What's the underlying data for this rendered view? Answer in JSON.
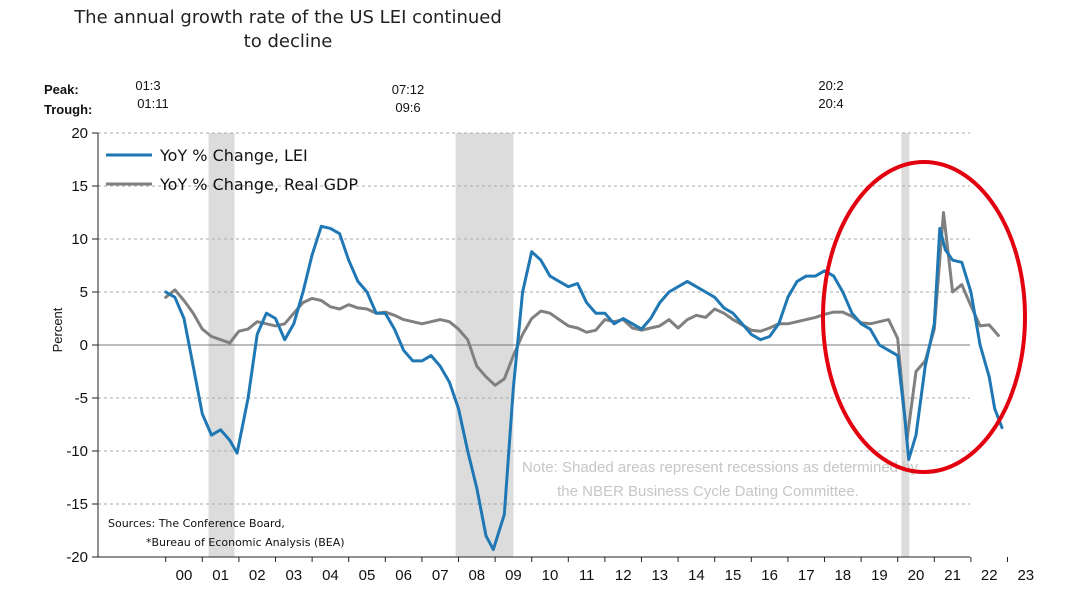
{
  "title_line1": "The annual growth rate of the US LEI continued",
  "title_line2": "to decline",
  "peak_label": "Peak:",
  "trough_label": "Trough:",
  "recessions": [
    {
      "peak": "01:3",
      "trough": "01:11",
      "start": 2001.17,
      "end": 2001.88
    },
    {
      "peak": "07:12",
      "trough": "09:6",
      "start": 2007.92,
      "end": 2009.5
    },
    {
      "peak": "20:2",
      "trough": "20:4",
      "start": 2020.1,
      "end": 2020.3
    }
  ],
  "note_line1": "Note: Shaded areas represent recessions as determined by",
  "note_line2": "the NBER Business Cycle Dating Committee.",
  "sources_line1": "Sources: The Conference Board,",
  "sources_line2": "*Bureau of Economic Analysis (BEA)",
  "colors": {
    "lei": "#1f77b4",
    "gdp": "#808080",
    "recession": "#dcdcdc",
    "highlight": "#e3000f"
  },
  "chart_data": {
    "type": "line",
    "ylabel": "Percent",
    "ylim": [
      -20,
      20
    ],
    "yticks": [
      20,
      15,
      10,
      5,
      0,
      -5,
      -10,
      -15,
      -20
    ],
    "xlim": [
      2000,
      2023.5
    ],
    "xticks": [
      "00",
      "01",
      "02",
      "03",
      "04",
      "05",
      "06",
      "07",
      "08",
      "09",
      "10",
      "11",
      "12",
      "13",
      "14",
      "15",
      "16",
      "17",
      "18",
      "19",
      "20",
      "21",
      "22",
      "23"
    ],
    "legend_placement": "top-left",
    "grid": "horizontal dashed",
    "series": [
      {
        "name": "YoY % Change, LEI",
        "key": "lei",
        "points": [
          [
            2000.0,
            5.0
          ],
          [
            2000.25,
            4.5
          ],
          [
            2000.5,
            2.5
          ],
          [
            2000.75,
            -2.0
          ],
          [
            2001.0,
            -6.5
          ],
          [
            2001.25,
            -8.5
          ],
          [
            2001.5,
            -8.0
          ],
          [
            2001.75,
            -9.0
          ],
          [
            2001.95,
            -10.2
          ],
          [
            2002.25,
            -5.0
          ],
          [
            2002.5,
            1.0
          ],
          [
            2002.75,
            3.0
          ],
          [
            2003.0,
            2.5
          ],
          [
            2003.25,
            0.5
          ],
          [
            2003.5,
            2.0
          ],
          [
            2003.75,
            5.0
          ],
          [
            2004.0,
            8.5
          ],
          [
            2004.25,
            11.2
          ],
          [
            2004.5,
            11.0
          ],
          [
            2004.75,
            10.5
          ],
          [
            2005.0,
            8.0
          ],
          [
            2005.25,
            6.0
          ],
          [
            2005.5,
            5.0
          ],
          [
            2005.75,
            3.0
          ],
          [
            2006.0,
            3.0
          ],
          [
            2006.25,
            1.5
          ],
          [
            2006.5,
            -0.5
          ],
          [
            2006.75,
            -1.5
          ],
          [
            2007.0,
            -1.5
          ],
          [
            2007.25,
            -1.0
          ],
          [
            2007.5,
            -2.0
          ],
          [
            2007.75,
            -3.5
          ],
          [
            2008.0,
            -6.0
          ],
          [
            2008.25,
            -10.0
          ],
          [
            2008.5,
            -13.5
          ],
          [
            2008.75,
            -18.0
          ],
          [
            2008.95,
            -19.3
          ],
          [
            2009.25,
            -16.0
          ],
          [
            2009.5,
            -4.0
          ],
          [
            2009.75,
            5.0
          ],
          [
            2010.0,
            8.8
          ],
          [
            2010.25,
            8.0
          ],
          [
            2010.5,
            6.5
          ],
          [
            2010.75,
            6.0
          ],
          [
            2011.0,
            5.5
          ],
          [
            2011.25,
            5.8
          ],
          [
            2011.5,
            4.0
          ],
          [
            2011.75,
            3.0
          ],
          [
            2012.0,
            3.0
          ],
          [
            2012.25,
            2.0
          ],
          [
            2012.5,
            2.5
          ],
          [
            2012.75,
            2.0
          ],
          [
            2013.0,
            1.5
          ],
          [
            2013.25,
            2.5
          ],
          [
            2013.5,
            4.0
          ],
          [
            2013.75,
            5.0
          ],
          [
            2014.0,
            5.5
          ],
          [
            2014.25,
            6.0
          ],
          [
            2014.5,
            5.5
          ],
          [
            2014.75,
            5.0
          ],
          [
            2015.0,
            4.5
          ],
          [
            2015.25,
            3.5
          ],
          [
            2015.5,
            3.0
          ],
          [
            2015.75,
            2.0
          ],
          [
            2016.0,
            1.0
          ],
          [
            2016.25,
            0.5
          ],
          [
            2016.5,
            0.8
          ],
          [
            2016.75,
            2.0
          ],
          [
            2017.0,
            4.5
          ],
          [
            2017.25,
            6.0
          ],
          [
            2017.5,
            6.5
          ],
          [
            2017.75,
            6.5
          ],
          [
            2018.0,
            7.0
          ],
          [
            2018.25,
            6.5
          ],
          [
            2018.5,
            5.0
          ],
          [
            2018.75,
            3.0
          ],
          [
            2019.0,
            2.0
          ],
          [
            2019.25,
            1.5
          ],
          [
            2019.5,
            0.0
          ],
          [
            2019.75,
            -0.5
          ],
          [
            2020.0,
            -1.0
          ],
          [
            2020.2,
            -7.0
          ],
          [
            2020.3,
            -10.8
          ],
          [
            2020.5,
            -8.5
          ],
          [
            2020.75,
            -2.0
          ],
          [
            2021.0,
            2.0
          ],
          [
            2021.15,
            11.0
          ],
          [
            2021.3,
            9.0
          ],
          [
            2021.5,
            8.0
          ],
          [
            2021.75,
            7.8
          ],
          [
            2022.0,
            5.0
          ],
          [
            2022.25,
            0.0
          ],
          [
            2022.5,
            -3.0
          ],
          [
            2022.65,
            -6.0
          ],
          [
            2022.85,
            -7.8
          ]
        ]
      },
      {
        "name": "YoY % Change, Real GDP",
        "key": "gdp",
        "points": [
          [
            2000.0,
            4.5
          ],
          [
            2000.25,
            5.2
          ],
          [
            2000.5,
            4.2
          ],
          [
            2000.75,
            3.0
          ],
          [
            2001.0,
            1.5
          ],
          [
            2001.25,
            0.8
          ],
          [
            2001.5,
            0.5
          ],
          [
            2001.75,
            0.2
          ],
          [
            2002.0,
            1.3
          ],
          [
            2002.25,
            1.5
          ],
          [
            2002.5,
            2.2
          ],
          [
            2002.75,
            2.0
          ],
          [
            2003.0,
            1.8
          ],
          [
            2003.25,
            2.0
          ],
          [
            2003.5,
            3.0
          ],
          [
            2003.75,
            4.0
          ],
          [
            2004.0,
            4.4
          ],
          [
            2004.25,
            4.2
          ],
          [
            2004.5,
            3.6
          ],
          [
            2004.75,
            3.4
          ],
          [
            2005.0,
            3.8
          ],
          [
            2005.25,
            3.5
          ],
          [
            2005.5,
            3.4
          ],
          [
            2005.75,
            3.0
          ],
          [
            2006.0,
            3.1
          ],
          [
            2006.25,
            2.8
          ],
          [
            2006.5,
            2.4
          ],
          [
            2006.75,
            2.2
          ],
          [
            2007.0,
            2.0
          ],
          [
            2007.25,
            2.2
          ],
          [
            2007.5,
            2.4
          ],
          [
            2007.75,
            2.2
          ],
          [
            2008.0,
            1.5
          ],
          [
            2008.25,
            0.5
          ],
          [
            2008.5,
            -2.0
          ],
          [
            2008.75,
            -3.0
          ],
          [
            2009.0,
            -3.8
          ],
          [
            2009.25,
            -3.2
          ],
          [
            2009.5,
            -1.0
          ],
          [
            2009.75,
            1.0
          ],
          [
            2010.0,
            2.5
          ],
          [
            2010.25,
            3.2
          ],
          [
            2010.5,
            3.0
          ],
          [
            2010.75,
            2.4
          ],
          [
            2011.0,
            1.8
          ],
          [
            2011.25,
            1.6
          ],
          [
            2011.5,
            1.2
          ],
          [
            2011.75,
            1.4
          ],
          [
            2012.0,
            2.4
          ],
          [
            2012.25,
            2.2
          ],
          [
            2012.5,
            2.4
          ],
          [
            2012.75,
            1.6
          ],
          [
            2013.0,
            1.4
          ],
          [
            2013.25,
            1.6
          ],
          [
            2013.5,
            1.8
          ],
          [
            2013.75,
            2.4
          ],
          [
            2014.0,
            1.6
          ],
          [
            2014.25,
            2.4
          ],
          [
            2014.5,
            2.8
          ],
          [
            2014.75,
            2.6
          ],
          [
            2015.0,
            3.4
          ],
          [
            2015.25,
            3.0
          ],
          [
            2015.5,
            2.4
          ],
          [
            2015.75,
            1.9
          ],
          [
            2016.0,
            1.4
          ],
          [
            2016.25,
            1.3
          ],
          [
            2016.5,
            1.6
          ],
          [
            2016.75,
            2.0
          ],
          [
            2017.0,
            2.0
          ],
          [
            2017.25,
            2.2
          ],
          [
            2017.5,
            2.4
          ],
          [
            2017.75,
            2.6
          ],
          [
            2018.0,
            2.9
          ],
          [
            2018.25,
            3.1
          ],
          [
            2018.5,
            3.1
          ],
          [
            2018.75,
            2.7
          ],
          [
            2019.0,
            2.1
          ],
          [
            2019.25,
            2.0
          ],
          [
            2019.5,
            2.2
          ],
          [
            2019.75,
            2.4
          ],
          [
            2020.0,
            0.6
          ],
          [
            2020.25,
            -9.0
          ],
          [
            2020.5,
            -2.5
          ],
          [
            2020.75,
            -1.5
          ],
          [
            2021.0,
            1.5
          ],
          [
            2021.25,
            12.5
          ],
          [
            2021.5,
            5.0
          ],
          [
            2021.75,
            5.7
          ],
          [
            2022.0,
            3.7
          ],
          [
            2022.25,
            1.8
          ],
          [
            2022.5,
            1.9
          ],
          [
            2022.75,
            0.9
          ]
        ]
      }
    ]
  }
}
